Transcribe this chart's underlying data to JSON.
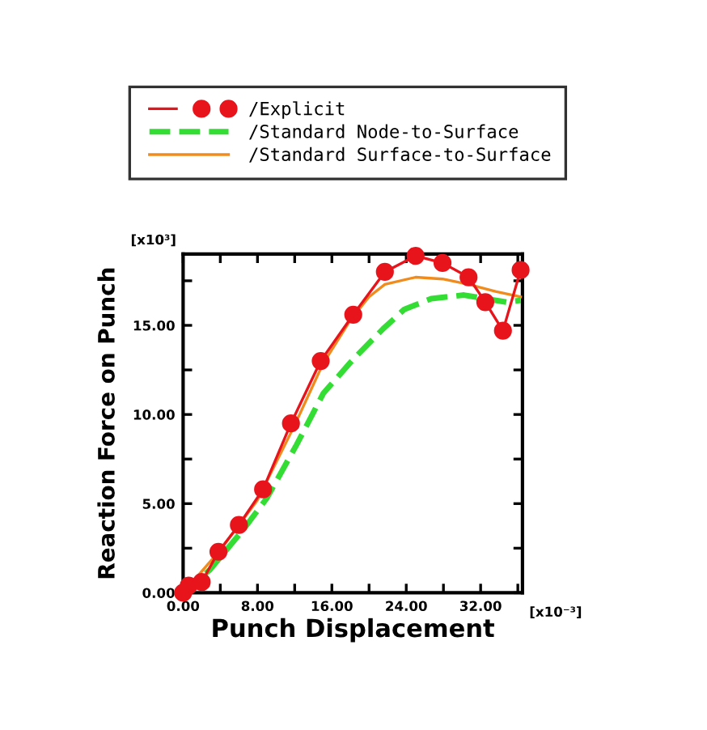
{
  "chart_data": {
    "type": "line",
    "xlabel": "Punch Displacement",
    "ylabel": "Reaction Force on Punch",
    "annotations": [
      "[x10³]",
      "[x10⁻³]"
    ],
    "xlim": [
      0,
      36.5
    ],
    "ylim": [
      0,
      19
    ],
    "xticks": [
      "0.00",
      {
        "value": 4,
        "label": null
      },
      {
        "value": 8,
        "label": "8.00"
      },
      {
        "value": 12,
        "label": null
      },
      {
        "value": 16,
        "label": "16.00"
      },
      {
        "value": 20,
        "label": null
      },
      {
        "value": 24,
        "label": "24.00"
      },
      {
        "value": 28,
        "label": null
      },
      {
        "value": 32,
        "label": "32.00"
      },
      {
        "value": 36,
        "label": null
      }
    ],
    "yticks": [
      {
        "value": 0,
        "label": "0.00"
      },
      {
        "value": 2.5,
        "label": null
      },
      {
        "value": 5,
        "label": "5.00"
      },
      {
        "value": 7.5,
        "label": null
      },
      {
        "value": 10,
        "label": "10.00"
      },
      {
        "value": 12.5,
        "label": null
      },
      {
        "value": 15,
        "label": "15.00"
      },
      {
        "value": 17.5,
        "label": null
      }
    ],
    "grid": false,
    "legend": "top",
    "series": [
      {
        "name": "/Explicit",
        "color": "#e8141c",
        "marker": "circle",
        "line_style": "solid",
        "x": [
          0,
          0.6,
          2,
          3.8,
          6,
          8.6,
          11.6,
          14.8,
          18.3,
          21.7,
          25.0,
          27.9,
          30.7,
          32.5,
          34.4,
          36.3
        ],
        "values": [
          0,
          0.4,
          0.6,
          2.3,
          3.8,
          5.8,
          9.5,
          13.0,
          15.6,
          18.0,
          18.9,
          18.5,
          17.7,
          16.3,
          14.7,
          18.1
        ]
      },
      {
        "name": "/Standard Node-to-Surface",
        "color": "#33dd33",
        "marker": "none",
        "line_style": "dashed",
        "x": [
          0,
          2.9,
          6.4,
          9.0,
          12.2,
          15.1,
          18.3,
          21.5,
          23.8,
          26.7,
          30.2,
          32.5,
          34.8,
          36.3
        ],
        "values": [
          0,
          1.3,
          3.5,
          5.3,
          8.3,
          11.2,
          13.1,
          14.8,
          15.9,
          16.5,
          16.7,
          16.5,
          16.3,
          16.4
        ]
      },
      {
        "name": "/Standard Surface-to-Surface",
        "color": "#f08c1e",
        "marker": "none",
        "line_style": "solid",
        "x": [
          0,
          4,
          8,
          12,
          15,
          18,
          20,
          21.7,
          25.0,
          27.9,
          30.7,
          33.6,
          36.3
        ],
        "values": [
          0,
          2.4,
          5.2,
          9.4,
          12.8,
          15.3,
          16.6,
          17.3,
          17.7,
          17.6,
          17.3,
          16.9,
          16.6
        ]
      }
    ]
  }
}
